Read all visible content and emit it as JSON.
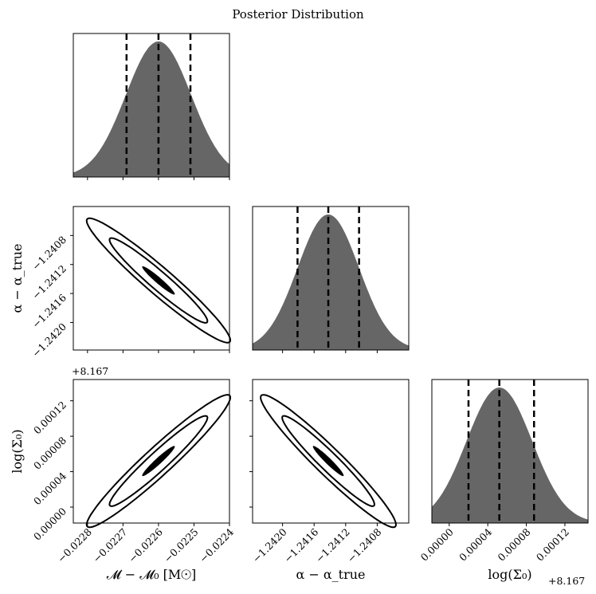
{
  "title": "Posterior Distribution",
  "offset_text": "+8.167",
  "labels": {
    "x_m": "𝓜 − 𝓜₀ [M☉]",
    "y_alpha": "α − α_true",
    "x_alpha": "α − α_true",
    "y_logsigma": "log(Σ₀)",
    "x_logsigma": "log(Σ₀)"
  },
  "ticks": {
    "m": [
      "−0.0228",
      "−0.0227",
      "−0.0226",
      "−0.0225",
      "−0.0224"
    ],
    "alpha": [
      "−1.2420",
      "−1.2416",
      "−1.2412",
      "−1.2408"
    ],
    "alpha_y": [
      "−1.2408",
      "−1.2412",
      "−1.2416",
      "−1.2420"
    ],
    "logsigma": [
      "0.00000",
      "0.00004",
      "0.00008",
      "0.00012"
    ],
    "logsigma_y": [
      "0.00012",
      "0.00008",
      "0.00004",
      "0.00000"
    ]
  },
  "chart_data": {
    "type": "corner",
    "title": "Posterior Distribution",
    "parameters": [
      {
        "name": "𝓜 − 𝓜₀ [M☉]",
        "range": [
          -0.02284,
          -0.0224
        ],
        "median": -0.0226,
        "q16": -0.02269,
        "q84": -0.02251,
        "sigma": 9.2e-05
      },
      {
        "name": "α − α_true",
        "range": [
          -1.24238,
          -1.2404
        ],
        "median": -1.24142,
        "q16": -1.24181,
        "q84": -1.24103,
        "sigma": 0.00039
      },
      {
        "name": "log(Σ₀)",
        "offset": 8.167,
        "range": [
          -1.8e-05,
          0.000144
        ],
        "median": 5.2e-05,
        "q16": 2e-05,
        "q84": 8.8e-05,
        "sigma": 3.4e-05
      }
    ],
    "correlations": {
      "m_alpha": -0.96,
      "m_logsigma": 0.96,
      "alpha_logsigma": -0.96
    },
    "contour_levels_sigma": [
      0.5,
      1.5,
      2.2
    ]
  }
}
